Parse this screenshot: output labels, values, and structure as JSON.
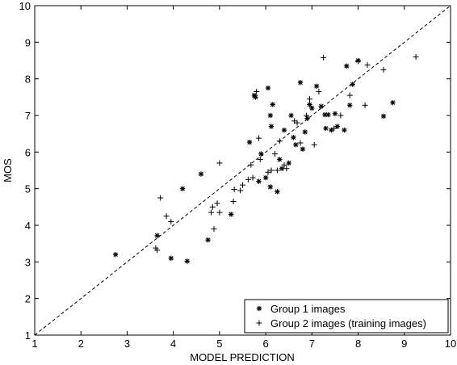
{
  "chart_data": {
    "type": "scatter",
    "xlabel": "MODEL PREDICTION",
    "ylabel": "MOS",
    "xlim": [
      1,
      10
    ],
    "ylim": [
      1,
      10
    ],
    "xticks": [
      "1",
      "2",
      "3",
      "4",
      "5",
      "6",
      "7",
      "8",
      "9",
      "10"
    ],
    "yticks": [
      "1",
      "2",
      "3",
      "4",
      "5",
      "6",
      "7",
      "8",
      "9",
      "10"
    ],
    "grid": false,
    "legend_position": "bottom-right",
    "reference_line": {
      "style": "dashed",
      "from": [
        1,
        1
      ],
      "to": [
        10,
        10
      ]
    },
    "series": [
      {
        "name": "Group 1 images",
        "marker": "*",
        "points": [
          [
            2.75,
            3.2
          ],
          [
            3.65,
            3.72
          ],
          [
            3.95,
            3.1
          ],
          [
            4.2,
            5.0
          ],
          [
            4.3,
            3.02
          ],
          [
            4.6,
            5.4
          ],
          [
            4.75,
            3.6
          ],
          [
            5.25,
            4.3
          ],
          [
            5.65,
            6.27
          ],
          [
            5.75,
            7.55
          ],
          [
            5.78,
            7.5
          ],
          [
            5.85,
            5.2
          ],
          [
            5.9,
            5.95
          ],
          [
            6.0,
            5.3
          ],
          [
            6.05,
            7.75
          ],
          [
            6.1,
            7.0
          ],
          [
            6.12,
            6.7
          ],
          [
            6.15,
            7.3
          ],
          [
            6.1,
            5.05
          ],
          [
            6.25,
            4.92
          ],
          [
            6.3,
            5.8
          ],
          [
            6.35,
            5.55
          ],
          [
            6.4,
            6.6
          ],
          [
            6.5,
            5.7
          ],
          [
            6.55,
            7.0
          ],
          [
            6.6,
            6.4
          ],
          [
            6.65,
            6.2
          ],
          [
            6.75,
            7.9
          ],
          [
            6.8,
            6.08
          ],
          [
            6.85,
            6.55
          ],
          [
            6.9,
            6.92
          ],
          [
            6.95,
            7.3
          ],
          [
            7.0,
            7.2
          ],
          [
            7.1,
            7.8
          ],
          [
            7.2,
            7.25
          ],
          [
            7.28,
            7.02
          ],
          [
            7.3,
            6.65
          ],
          [
            7.35,
            7.02
          ],
          [
            7.42,
            6.6
          ],
          [
            7.5,
            7.05
          ],
          [
            7.55,
            6.7
          ],
          [
            7.7,
            6.6
          ],
          [
            7.75,
            8.35
          ],
          [
            7.82,
            7.28
          ],
          [
            7.88,
            7.85
          ],
          [
            8.0,
            8.5
          ],
          [
            8.55,
            6.98
          ],
          [
            8.75,
            7.35
          ]
        ]
      },
      {
        "name": "Group 2 images (training images)",
        "marker": "+",
        "points": [
          [
            3.62,
            3.38
          ],
          [
            3.65,
            3.32
          ],
          [
            3.72,
            4.75
          ],
          [
            3.85,
            4.25
          ],
          [
            3.95,
            4.1
          ],
          [
            4.82,
            4.35
          ],
          [
            4.85,
            4.5
          ],
          [
            4.88,
            3.9
          ],
          [
            4.95,
            4.6
          ],
          [
            5.0,
            4.35
          ],
          [
            5.0,
            5.7
          ],
          [
            5.3,
            4.65
          ],
          [
            5.32,
            4.98
          ],
          [
            5.45,
            4.95
          ],
          [
            5.5,
            5.1
          ],
          [
            5.62,
            5.25
          ],
          [
            5.68,
            5.65
          ],
          [
            5.72,
            5.3
          ],
          [
            5.8,
            7.65
          ],
          [
            5.85,
            6.38
          ],
          [
            5.88,
            5.8
          ],
          [
            6.05,
            5.45
          ],
          [
            6.12,
            5.5
          ],
          [
            6.2,
            5.95
          ],
          [
            6.25,
            5.5
          ],
          [
            6.3,
            6.3
          ],
          [
            6.4,
            5.65
          ],
          [
            6.45,
            5.55
          ],
          [
            6.62,
            6.85
          ],
          [
            6.68,
            6.8
          ],
          [
            6.75,
            6.25
          ],
          [
            6.88,
            7.0
          ],
          [
            6.95,
            7.45
          ],
          [
            7.05,
            6.2
          ],
          [
            7.15,
            7.65
          ],
          [
            7.25,
            8.58
          ],
          [
            7.48,
            6.65
          ],
          [
            7.62,
            7.0
          ],
          [
            7.82,
            7.55
          ],
          [
            8.0,
            8.48
          ],
          [
            8.15,
            7.28
          ],
          [
            8.2,
            8.38
          ],
          [
            8.55,
            8.25
          ],
          [
            9.25,
            8.6
          ]
        ]
      }
    ]
  }
}
